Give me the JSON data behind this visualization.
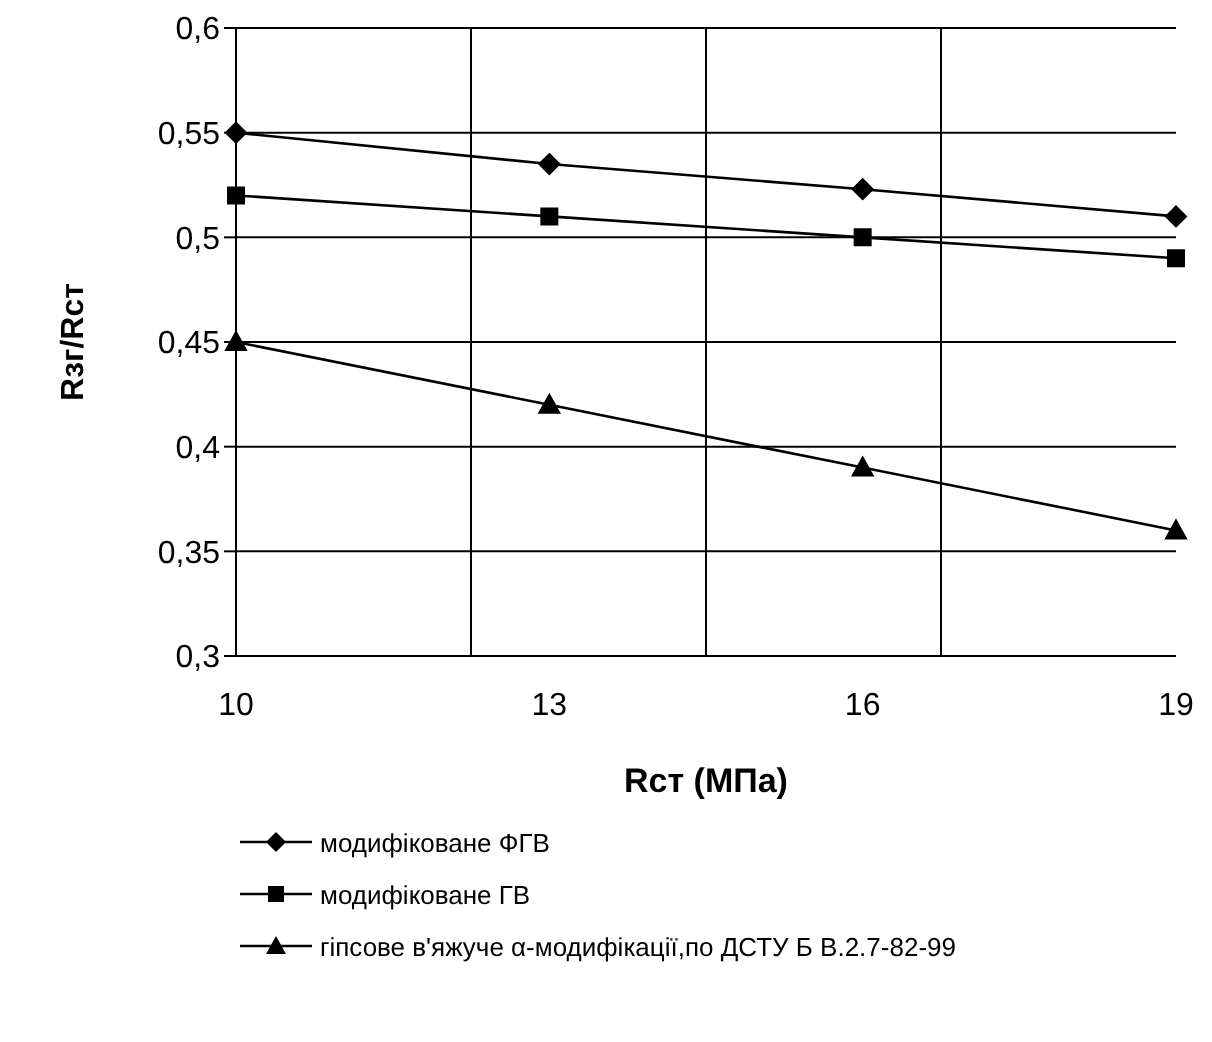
{
  "chart_data": {
    "type": "line",
    "xlabel": "Rст (МПа)",
    "ylabel": "Rзг/Rст",
    "categories": [
      "10",
      "13",
      "16",
      "19"
    ],
    "series": [
      {
        "name": "модифіковане ФГВ",
        "color": "#000000",
        "marker": "diamond",
        "values": [
          0.55,
          0.535,
          0.523,
          0.51
        ]
      },
      {
        "name": "модифіковане ГВ",
        "color": "#000000",
        "marker": "square",
        "values": [
          0.52,
          0.51,
          0.5,
          0.49
        ]
      },
      {
        "name": "гіпсове в'яжуче α-модифікації,по ДСТУ Б В.2.7-82-99",
        "color": "#000000",
        "marker": "triangle",
        "values": [
          0.45,
          0.42,
          0.39,
          0.36
        ]
      }
    ],
    "ylim": [
      0.3,
      0.6
    ],
    "yticks": [
      {
        "value": 0.3,
        "label": "0,3"
      },
      {
        "value": 0.35,
        "label": "0,35"
      },
      {
        "value": 0.4,
        "label": "0,4"
      },
      {
        "value": 0.45,
        "label": "0,45"
      },
      {
        "value": 0.5,
        "label": "0,5"
      },
      {
        "value": 0.55,
        "label": "0,55"
      },
      {
        "value": 0.6,
        "label": "0,6"
      }
    ],
    "grid": true,
    "legend": "bottom",
    "line_style": "solid"
  }
}
